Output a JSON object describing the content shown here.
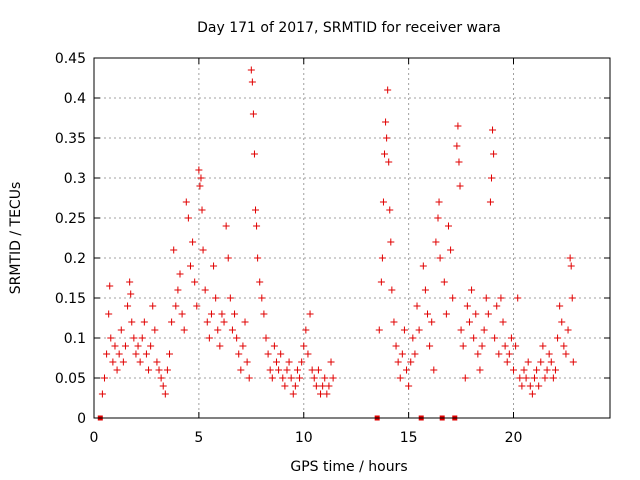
{
  "chart_data": {
    "type": "scatter",
    "title": "Day 171 of 2017, SRMTID for receiver wara",
    "xlabel": "GPS time / hours",
    "ylabel": "SRMTID / TECUs",
    "xlim": [
      0,
      24.6
    ],
    "ylim": [
      0,
      0.45
    ],
    "xticks": [
      0,
      5,
      10,
      15,
      20
    ],
    "yticks": [
      0,
      0.05,
      0.1,
      0.15,
      0.2,
      0.25,
      0.3,
      0.35,
      0.4,
      0.45
    ],
    "ytick_labels": [
      "0",
      "0.05",
      "0.1",
      "0.15",
      "0.2",
      "0.25",
      "0.3",
      "0.35",
      "0.4",
      "0.45"
    ],
    "grid": true,
    "marker": "plus",
    "color": "#e00000",
    "series": [
      {
        "name": "SRMTID",
        "points": [
          [
            0.3,
            0.0
          ],
          [
            0.4,
            0.03
          ],
          [
            0.5,
            0.05
          ],
          [
            0.6,
            0.08
          ],
          [
            0.7,
            0.13
          ],
          [
            0.75,
            0.165
          ],
          [
            0.8,
            0.1
          ],
          [
            0.9,
            0.07
          ],
          [
            1.0,
            0.09
          ],
          [
            1.1,
            0.06
          ],
          [
            1.2,
            0.08
          ],
          [
            1.3,
            0.11
          ],
          [
            1.4,
            0.07
          ],
          [
            1.5,
            0.09
          ],
          [
            1.6,
            0.14
          ],
          [
            1.7,
            0.17
          ],
          [
            1.75,
            0.155
          ],
          [
            1.8,
            0.12
          ],
          [
            1.9,
            0.1
          ],
          [
            2.0,
            0.08
          ],
          [
            2.1,
            0.09
          ],
          [
            2.2,
            0.07
          ],
          [
            2.3,
            0.1
          ],
          [
            2.4,
            0.12
          ],
          [
            2.5,
            0.08
          ],
          [
            2.6,
            0.06
          ],
          [
            2.7,
            0.09
          ],
          [
            2.8,
            0.14
          ],
          [
            2.9,
            0.11
          ],
          [
            3.0,
            0.07
          ],
          [
            3.1,
            0.06
          ],
          [
            3.2,
            0.05
          ],
          [
            3.3,
            0.04
          ],
          [
            3.4,
            0.03
          ],
          [
            3.5,
            0.06
          ],
          [
            3.6,
            0.08
          ],
          [
            3.7,
            0.12
          ],
          [
            3.8,
            0.21
          ],
          [
            3.9,
            0.14
          ],
          [
            4.0,
            0.16
          ],
          [
            4.1,
            0.18
          ],
          [
            4.2,
            0.13
          ],
          [
            4.3,
            0.11
          ],
          [
            4.4,
            0.27
          ],
          [
            4.5,
            0.25
          ],
          [
            4.6,
            0.19
          ],
          [
            4.7,
            0.22
          ],
          [
            4.8,
            0.17
          ],
          [
            4.9,
            0.14
          ],
          [
            5.0,
            0.31
          ],
          [
            5.05,
            0.29
          ],
          [
            5.1,
            0.3
          ],
          [
            5.15,
            0.26
          ],
          [
            5.2,
            0.21
          ],
          [
            5.3,
            0.16
          ],
          [
            5.4,
            0.12
          ],
          [
            5.5,
            0.1
          ],
          [
            5.6,
            0.13
          ],
          [
            5.7,
            0.19
          ],
          [
            5.8,
            0.15
          ],
          [
            5.9,
            0.11
          ],
          [
            6.0,
            0.09
          ],
          [
            6.1,
            0.13
          ],
          [
            6.2,
            0.12
          ],
          [
            6.3,
            0.24
          ],
          [
            6.4,
            0.2
          ],
          [
            6.5,
            0.15
          ],
          [
            6.6,
            0.11
          ],
          [
            6.7,
            0.13
          ],
          [
            6.8,
            0.1
          ],
          [
            6.9,
            0.08
          ],
          [
            7.0,
            0.06
          ],
          [
            7.1,
            0.09
          ],
          [
            7.2,
            0.12
          ],
          [
            7.3,
            0.07
          ],
          [
            7.4,
            0.05
          ],
          [
            7.5,
            0.435
          ],
          [
            7.55,
            0.42
          ],
          [
            7.6,
            0.38
          ],
          [
            7.65,
            0.33
          ],
          [
            7.7,
            0.26
          ],
          [
            7.75,
            0.24
          ],
          [
            7.8,
            0.2
          ],
          [
            7.9,
            0.17
          ],
          [
            8.0,
            0.15
          ],
          [
            8.1,
            0.13
          ],
          [
            8.2,
            0.1
          ],
          [
            8.3,
            0.08
          ],
          [
            8.4,
            0.06
          ],
          [
            8.5,
            0.05
          ],
          [
            8.6,
            0.09
          ],
          [
            8.7,
            0.07
          ],
          [
            8.8,
            0.06
          ],
          [
            8.9,
            0.08
          ],
          [
            9.0,
            0.05
          ],
          [
            9.1,
            0.04
          ],
          [
            9.2,
            0.06
          ],
          [
            9.3,
            0.07
          ],
          [
            9.4,
            0.05
          ],
          [
            9.5,
            0.03
          ],
          [
            9.6,
            0.04
          ],
          [
            9.7,
            0.06
          ],
          [
            9.8,
            0.05
          ],
          [
            9.9,
            0.07
          ],
          [
            10.0,
            0.09
          ],
          [
            10.1,
            0.11
          ],
          [
            10.2,
            0.08
          ],
          [
            10.3,
            0.13
          ],
          [
            10.4,
            0.06
          ],
          [
            10.5,
            0.05
          ],
          [
            10.6,
            0.04
          ],
          [
            10.7,
            0.06
          ],
          [
            10.8,
            0.03
          ],
          [
            10.9,
            0.04
          ],
          [
            11.0,
            0.05
          ],
          [
            11.1,
            0.03
          ],
          [
            11.2,
            0.04
          ],
          [
            11.3,
            0.07
          ],
          [
            11.4,
            0.05
          ],
          [
            13.5,
            0.0
          ],
          [
            13.6,
            0.11
          ],
          [
            13.7,
            0.17
          ],
          [
            13.75,
            0.2
          ],
          [
            13.8,
            0.27
          ],
          [
            13.85,
            0.33
          ],
          [
            13.9,
            0.37
          ],
          [
            13.95,
            0.35
          ],
          [
            14.0,
            0.41
          ],
          [
            14.05,
            0.32
          ],
          [
            14.1,
            0.26
          ],
          [
            14.15,
            0.22
          ],
          [
            14.2,
            0.16
          ],
          [
            14.3,
            0.12
          ],
          [
            14.4,
            0.09
          ],
          [
            14.5,
            0.07
          ],
          [
            14.6,
            0.05
          ],
          [
            14.7,
            0.08
          ],
          [
            14.8,
            0.11
          ],
          [
            14.9,
            0.06
          ],
          [
            15.0,
            0.04
          ],
          [
            15.1,
            0.07
          ],
          [
            15.2,
            0.1
          ],
          [
            15.3,
            0.08
          ],
          [
            15.4,
            0.14
          ],
          [
            15.5,
            0.11
          ],
          [
            15.6,
            0.0
          ],
          [
            15.7,
            0.19
          ],
          [
            15.8,
            0.16
          ],
          [
            15.9,
            0.13
          ],
          [
            16.0,
            0.09
          ],
          [
            16.1,
            0.12
          ],
          [
            16.2,
            0.06
          ],
          [
            16.3,
            0.22
          ],
          [
            16.4,
            0.25
          ],
          [
            16.45,
            0.27
          ],
          [
            16.5,
            0.2
          ],
          [
            16.6,
            0.0
          ],
          [
            16.7,
            0.17
          ],
          [
            16.8,
            0.13
          ],
          [
            16.9,
            0.24
          ],
          [
            17.0,
            0.21
          ],
          [
            17.1,
            0.15
          ],
          [
            17.2,
            0.0
          ],
          [
            17.3,
            0.34
          ],
          [
            17.35,
            0.365
          ],
          [
            17.4,
            0.32
          ],
          [
            17.45,
            0.29
          ],
          [
            17.5,
            0.11
          ],
          [
            17.6,
            0.09
          ],
          [
            17.7,
            0.05
          ],
          [
            17.8,
            0.14
          ],
          [
            17.9,
            0.12
          ],
          [
            18.0,
            0.16
          ],
          [
            18.1,
            0.1
          ],
          [
            18.2,
            0.13
          ],
          [
            18.3,
            0.08
          ],
          [
            18.4,
            0.06
          ],
          [
            18.5,
            0.09
          ],
          [
            18.6,
            0.11
          ],
          [
            18.7,
            0.15
          ],
          [
            18.8,
            0.13
          ],
          [
            18.9,
            0.27
          ],
          [
            18.95,
            0.3
          ],
          [
            19.0,
            0.36
          ],
          [
            19.05,
            0.33
          ],
          [
            19.1,
            0.1
          ],
          [
            19.2,
            0.14
          ],
          [
            19.3,
            0.08
          ],
          [
            19.4,
            0.15
          ],
          [
            19.5,
            0.12
          ],
          [
            19.6,
            0.09
          ],
          [
            19.7,
            0.07
          ],
          [
            19.8,
            0.08
          ],
          [
            19.9,
            0.1
          ],
          [
            20.0,
            0.06
          ],
          [
            20.1,
            0.09
          ],
          [
            20.2,
            0.15
          ],
          [
            20.3,
            0.05
          ],
          [
            20.4,
            0.04
          ],
          [
            20.5,
            0.06
          ],
          [
            20.6,
            0.05
          ],
          [
            20.7,
            0.07
          ],
          [
            20.8,
            0.04
          ],
          [
            20.9,
            0.03
          ],
          [
            21.0,
            0.05
          ],
          [
            21.1,
            0.06
          ],
          [
            21.2,
            0.04
          ],
          [
            21.3,
            0.07
          ],
          [
            21.4,
            0.09
          ],
          [
            21.5,
            0.05
          ],
          [
            21.6,
            0.06
          ],
          [
            21.7,
            0.08
          ],
          [
            21.8,
            0.07
          ],
          [
            21.9,
            0.05
          ],
          [
            22.0,
            0.06
          ],
          [
            22.1,
            0.1
          ],
          [
            22.2,
            0.14
          ],
          [
            22.3,
            0.12
          ],
          [
            22.4,
            0.09
          ],
          [
            22.5,
            0.08
          ],
          [
            22.6,
            0.11
          ],
          [
            22.7,
            0.2
          ],
          [
            22.75,
            0.19
          ],
          [
            22.8,
            0.15
          ],
          [
            22.85,
            0.07
          ]
        ]
      }
    ]
  }
}
